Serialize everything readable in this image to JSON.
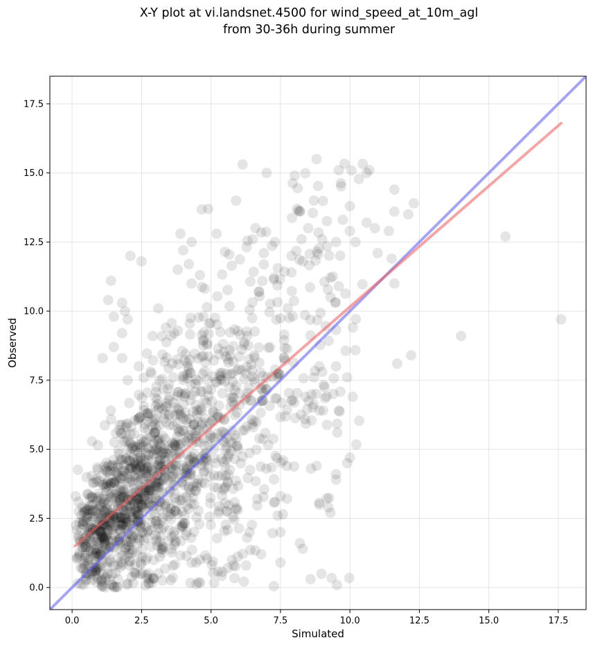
{
  "chart_data": {
    "type": "scatter",
    "title": "X-Y plot at vi.landsnet.4500 for wind_speed_at_10m_agl",
    "subtitle": "from 30-36h during summer",
    "xlabel": "Simulated",
    "ylabel": "Observed",
    "xlim": [
      -0.8,
      18.5
    ],
    "ylim": [
      -0.8,
      18.5
    ],
    "xticks": [
      "0.0",
      "2.5",
      "5.0",
      "7.5",
      "10.0",
      "12.5",
      "15.0",
      "17.5"
    ],
    "yticks": [
      "0.0",
      "2.5",
      "5.0",
      "7.5",
      "10.0",
      "12.5",
      "15.0",
      "17.5"
    ],
    "grid": true,
    "colors": {
      "points": "#000000",
      "regression_line": "#f25a5a",
      "one_to_one_line": "#5a5af2",
      "grid": "#d9d9d9"
    },
    "point_alpha": 0.1,
    "regression_line": {
      "x": [
        0.1,
        17.6
      ],
      "y": [
        1.5,
        16.8
      ]
    },
    "one_to_one_line": {
      "x": [
        -0.8,
        18.5
      ],
      "y": [
        -0.8,
        18.5
      ]
    },
    "point_cloud": {
      "count": 1500,
      "x_range": [
        0.0,
        17.6
      ],
      "y_range": [
        0.0,
        15.5
      ],
      "note": "dense cloud concentrated between simulated 0-8 and observed 0-10"
    },
    "points_outliers": [
      [
        17.6,
        9.7
      ],
      [
        15.6,
        12.7
      ],
      [
        14.0,
        9.1
      ],
      [
        12.2,
        8.4
      ],
      [
        11.7,
        8.1
      ],
      [
        12.3,
        13.9
      ],
      [
        11.6,
        14.4
      ],
      [
        11.6,
        13.6
      ],
      [
        12.1,
        13.5
      ],
      [
        11.5,
        11.9
      ],
      [
        11.4,
        12.9
      ],
      [
        11.6,
        11.0
      ],
      [
        10.6,
        15.0
      ],
      [
        10.7,
        15.1
      ],
      [
        10.0,
        13.8
      ],
      [
        9.6,
        15.1
      ],
      [
        8.8,
        15.5
      ],
      [
        8.7,
        14.0
      ],
      [
        8.2,
        13.6
      ],
      [
        8.1,
        13.7
      ],
      [
        9.0,
        12.6
      ],
      [
        9.5,
        12.5
      ],
      [
        10.9,
        13.0
      ],
      [
        10.6,
        13.2
      ],
      [
        11.0,
        12.1
      ],
      [
        10.2,
        12.5
      ],
      [
        10.0,
        12.9
      ],
      [
        9.9,
        7.6
      ],
      [
        10.1,
        6.9
      ],
      [
        9.6,
        6.4
      ],
      [
        9.4,
        7.0
      ],
      [
        9.5,
        8.0
      ],
      [
        8.9,
        8.0
      ],
      [
        9.0,
        7.8
      ],
      [
        8.7,
        7.6
      ],
      [
        8.0,
        6.7
      ],
      [
        8.4,
        6.9
      ],
      [
        8.9,
        6.4
      ],
      [
        9.5,
        4.1
      ],
      [
        9.9,
        4.5
      ],
      [
        9.5,
        3.9
      ],
      [
        9.3,
        2.7
      ],
      [
        8.9,
        3.0
      ],
      [
        8.8,
        4.4
      ],
      [
        8.6,
        4.3
      ],
      [
        7.6,
        4.6
      ],
      [
        7.5,
        3.3
      ],
      [
        7.4,
        2.6
      ],
      [
        7.5,
        2.0
      ],
      [
        7.5,
        0.9
      ],
      [
        8.2,
        1.6
      ],
      [
        8.3,
        1.4
      ],
      [
        7.3,
        3.1
      ],
      [
        5.6,
        0.7
      ],
      [
        6.3,
        1.8
      ],
      [
        4.3,
        0.9
      ],
      [
        5.8,
        0.8
      ],
      [
        7.9,
        12.0
      ],
      [
        7.3,
        12.5
      ],
      [
        8.5,
        13.0
      ],
      [
        9.6,
        10.9
      ],
      [
        9.3,
        10.5
      ],
      [
        7.9,
        11.4
      ],
      [
        8.3,
        11.8
      ],
      [
        7.0,
        15.0
      ],
      [
        5.9,
        14.0
      ],
      [
        4.9,
        13.7
      ],
      [
        5.2,
        12.8
      ],
      [
        6.5,
        12.6
      ],
      [
        3.9,
        12.8
      ],
      [
        4.3,
        12.5
      ],
      [
        4.0,
        12.2
      ],
      [
        4.2,
        11.7
      ],
      [
        3.8,
        11.5
      ],
      [
        4.6,
        11.3
      ],
      [
        4.3,
        11.0
      ],
      [
        2.1,
        12.0
      ],
      [
        1.8,
        10.3
      ],
      [
        1.3,
        10.4
      ],
      [
        1.5,
        9.8
      ],
      [
        1.9,
        10.0
      ],
      [
        2.5,
        11.8
      ],
      [
        3.1,
        10.1
      ],
      [
        2.9,
        9.1
      ],
      [
        1.8,
        8.3
      ],
      [
        1.1,
        8.3
      ],
      [
        1.8,
        9.2
      ],
      [
        2.0,
        9.7
      ],
      [
        2.4,
        8.0
      ],
      [
        2.0,
        7.5
      ],
      [
        1.4,
        11.1
      ],
      [
        1.5,
        8.7
      ],
      [
        6.9,
        12.1
      ],
      [
        6.6,
        13.0
      ]
    ]
  }
}
